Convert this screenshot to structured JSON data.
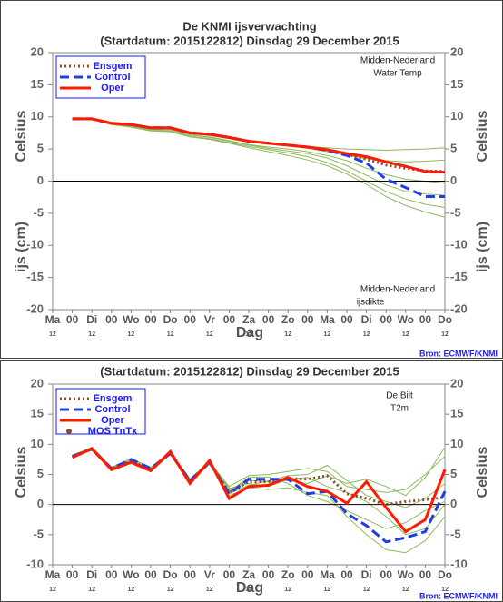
{
  "chart_data": [
    {
      "type": "line",
      "title": "De KNMI ijsverwachting",
      "subtitle": "(Startdatum: 2015122812)   Dinsdag   29 December  2015",
      "ylabel_upper": "Celsius",
      "ylabel_lower": "ijs (cm)",
      "xlabel": "Dag",
      "categories": [
        "Ma",
        "00",
        "Di",
        "00",
        "Wo",
        "00",
        "Do",
        "00",
        "Vr",
        "00",
        "Za",
        "00",
        "Zo",
        "00",
        "Ma",
        "00",
        "Di",
        "00",
        "Wo",
        "00",
        "Do"
      ],
      "x_sublabels": [
        "12",
        null,
        "12",
        null,
        "12",
        null,
        "12",
        null,
        "12",
        null,
        "12",
        null,
        "12",
        null,
        "12",
        null,
        "12",
        null,
        "12",
        null,
        "12"
      ],
      "ylim": [
        -20,
        20
      ],
      "yticks": [
        -20,
        -15,
        -10,
        -5,
        0,
        5,
        10,
        15,
        20
      ],
      "annotations": [
        "Midden-Nederland",
        "Water Temp",
        "Midden-Nederland",
        "ijsdikte",
        "Bron: ECMWF/KNMI"
      ],
      "member_color": "#8fb860",
      "members": [
        [
          null,
          9.7,
          9.6,
          9.1,
          8.7,
          8.2,
          8.1,
          7.4,
          7.1,
          6.6,
          6.1,
          5.8,
          5.6,
          5.4,
          5.2,
          5.0,
          4.9,
          4.8,
          4.9,
          5.0,
          5.2
        ],
        [
          null,
          9.7,
          9.7,
          9.0,
          8.9,
          8.4,
          8.2,
          7.6,
          7.4,
          6.9,
          6.3,
          5.9,
          5.5,
          5.1,
          4.6,
          4.0,
          3.5,
          3.2,
          3.0,
          3.1,
          3.3
        ],
        [
          null,
          9.7,
          9.7,
          8.9,
          8.6,
          8.0,
          8.0,
          7.2,
          6.9,
          6.3,
          5.7,
          5.3,
          5.0,
          4.6,
          4.0,
          3.2,
          2.0,
          1.0,
          0.3,
          0.0,
          -0.3
        ],
        [
          null,
          9.7,
          9.6,
          8.9,
          8.7,
          8.1,
          8.0,
          7.2,
          6.8,
          6.2,
          5.6,
          5.1,
          4.7,
          4.3,
          3.6,
          2.4,
          0.9,
          -0.6,
          -1.6,
          -2.0,
          -2.2
        ],
        [
          null,
          9.7,
          9.6,
          8.8,
          8.5,
          7.9,
          7.8,
          7.0,
          6.6,
          6.0,
          5.4,
          4.9,
          4.4,
          3.8,
          2.9,
          1.6,
          0.0,
          -1.6,
          -2.8,
          -3.6,
          -4.1
        ],
        [
          null,
          9.7,
          9.6,
          8.8,
          8.4,
          7.8,
          7.7,
          6.9,
          6.5,
          5.9,
          5.2,
          4.6,
          4.0,
          3.3,
          2.4,
          1.1,
          -0.5,
          -2.4,
          -3.8,
          -4.8,
          -5.6
        ]
      ],
      "series": [
        {
          "name": "Ensgem",
          "color": "#8b4a2b",
          "style": "dotted",
          "values": [
            null,
            9.7,
            9.7,
            9.0,
            8.8,
            8.3,
            8.3,
            7.5,
            7.3,
            6.8,
            6.2,
            5.9,
            5.6,
            5.3,
            4.8,
            4.2,
            3.4,
            2.5,
            2.0,
            1.6,
            1.5
          ]
        },
        {
          "name": "Control",
          "color": "#1f3fdf",
          "style": "dashed",
          "values": [
            null,
            9.7,
            9.7,
            9.0,
            8.8,
            8.3,
            8.3,
            7.5,
            7.3,
            6.8,
            6.2,
            5.9,
            5.6,
            5.3,
            4.8,
            4.0,
            2.8,
            0.3,
            -1.0,
            -2.4,
            -2.4
          ]
        },
        {
          "name": "Oper",
          "color": "#ff1a00",
          "style": "solid",
          "values": [
            null,
            9.7,
            9.7,
            9.0,
            8.8,
            8.3,
            8.3,
            7.5,
            7.3,
            6.8,
            6.2,
            5.9,
            5.6,
            5.3,
            4.9,
            4.3,
            3.8,
            3.0,
            2.3,
            1.5,
            1.4
          ]
        }
      ]
    },
    {
      "type": "line",
      "subtitle": "(Startdatum: 2015122812)   Dinsdag   29 December  2015",
      "ylabel_upper": "Celsius",
      "xlabel": "Dag",
      "categories": [
        "Ma",
        "00",
        "Di",
        "00",
        "Wo",
        "00",
        "Do",
        "00",
        "Vr",
        "00",
        "Za",
        "00",
        "Zo",
        "00",
        "Ma",
        "00",
        "Di",
        "00",
        "Wo",
        "00",
        "Do"
      ],
      "x_sublabels": [
        "12",
        null,
        "12",
        null,
        "12",
        null,
        "12",
        null,
        "12",
        null,
        "12",
        null,
        "12",
        null,
        "12",
        null,
        "12",
        null,
        "12",
        null,
        "12"
      ],
      "ylim": [
        -10,
        20
      ],
      "yticks": [
        -10,
        -5,
        0,
        5,
        10,
        15,
        20
      ],
      "annotations": [
        "De Bilt",
        "T2m",
        "Bron: ECMWF/KNMI"
      ],
      "member_color": "#8fb860",
      "members": [
        [
          null,
          8.2,
          9.5,
          6.2,
          7.6,
          6.2,
          8.6,
          4.2,
          7.2,
          2.5,
          4.0,
          3.8,
          4.0,
          3.5,
          4.8,
          3.5,
          4.2,
          3.0,
          1.5,
          4.5,
          9.5
        ],
        [
          null,
          7.9,
          9.0,
          5.6,
          6.9,
          5.5,
          8.3,
          3.6,
          6.7,
          1.8,
          3.2,
          3.9,
          4.8,
          5.0,
          6.5,
          4.0,
          1.5,
          0.5,
          -0.5,
          1.0,
          3.5
        ],
        [
          null,
          8.0,
          9.1,
          5.8,
          7.2,
          5.8,
          8.5,
          3.9,
          7.0,
          2.2,
          4.5,
          4.6,
          3.5,
          1.5,
          0.5,
          -1.0,
          -2.5,
          -4.0,
          -3.0,
          -1.0,
          0.5
        ],
        [
          null,
          8.1,
          9.3,
          6.0,
          7.4,
          6.0,
          8.7,
          4.0,
          7.3,
          1.5,
          2.8,
          2.5,
          2.8,
          2.0,
          1.5,
          -2.0,
          -5.0,
          -7.5,
          -8.0,
          -6.0,
          -2.0
        ],
        [
          null,
          7.8,
          9.2,
          5.7,
          7.1,
          5.7,
          8.4,
          3.8,
          6.9,
          2.7,
          3.5,
          3.0,
          4.2,
          4.5,
          3.0,
          2.0,
          0.5,
          -2.0,
          -5.0,
          -4.0,
          0.0
        ],
        [
          null,
          8.0,
          9.4,
          6.1,
          7.3,
          5.9,
          8.6,
          4.1,
          7.1,
          3.0,
          4.8,
          5.0,
          5.5,
          6.0,
          5.5,
          3.0,
          2.5,
          2.0,
          2.5,
          5.0,
          8.0
        ]
      ],
      "series": [
        {
          "name": "Ensgem",
          "color": "#8b4a2b",
          "style": "dotted",
          "values": [
            null,
            8.0,
            9.2,
            6.0,
            7.2,
            5.8,
            8.5,
            4.0,
            7.0,
            2.0,
            3.8,
            3.8,
            4.3,
            4.2,
            4.8,
            1.8,
            1.0,
            0.0,
            0.5,
            0.8,
            1.2
          ]
        },
        {
          "name": "Control",
          "color": "#1f3fdf",
          "style": "dashed",
          "values": [
            null,
            8.0,
            9.2,
            6.0,
            7.5,
            6.0,
            8.5,
            4.0,
            7.0,
            1.8,
            4.2,
            4.2,
            4.2,
            1.8,
            2.2,
            -1.5,
            -3.5,
            -6.2,
            -5.5,
            -4.5,
            2.2
          ]
        },
        {
          "name": "Oper",
          "color": "#ff1a00",
          "style": "solid",
          "values": [
            null,
            7.8,
            9.3,
            5.8,
            7.0,
            5.6,
            8.8,
            3.5,
            7.3,
            1.0,
            3.0,
            3.2,
            4.5,
            3.0,
            2.2,
            0.2,
            3.8,
            -0.5,
            -4.5,
            -2.5,
            5.8
          ]
        },
        {
          "name": "MOS TnTx",
          "color": "#8b4a2b",
          "style": "dot",
          "values": [
            null,
            null,
            null,
            null,
            null,
            null,
            null,
            null,
            null,
            null,
            null,
            null,
            null,
            null,
            null,
            null,
            null,
            null,
            null,
            null,
            null
          ]
        }
      ]
    }
  ]
}
